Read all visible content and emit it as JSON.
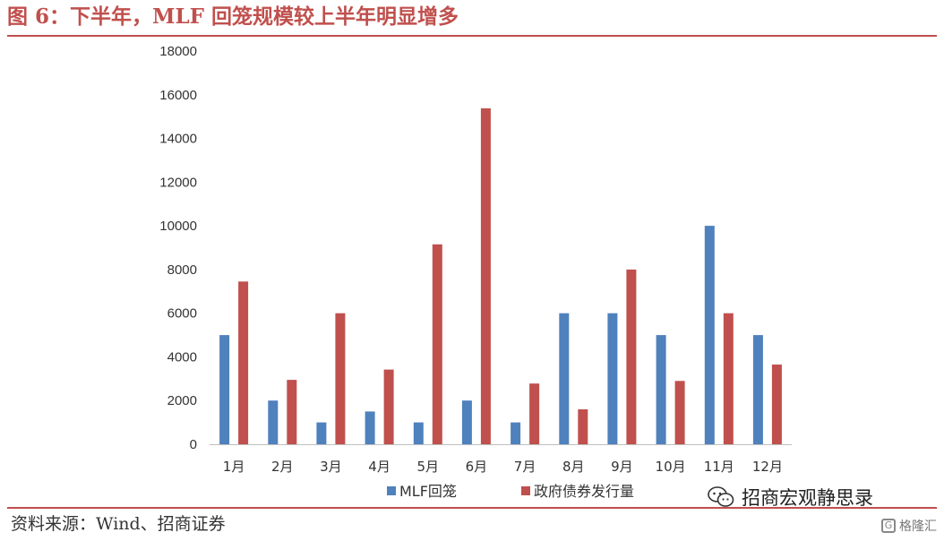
{
  "header": {
    "title": "图 6：下半年，MLF 回笼规模较上半年明显增多"
  },
  "footer": {
    "source": "资料来源：Wind、招商证券",
    "watermark": "招商宏观静思录",
    "badge": "格隆汇"
  },
  "colors": {
    "accent": "#c0504d",
    "series_blue": "#4f81bd",
    "series_red": "#c0504d"
  },
  "chart_data": {
    "type": "bar",
    "categories": [
      "1月",
      "2月",
      "3月",
      "4月",
      "5月",
      "6月",
      "7月",
      "8月",
      "9月",
      "10月",
      "11月",
      "12月"
    ],
    "series": [
      {
        "name": "MLF回笼",
        "color": "#4f81bd",
        "values": [
          5000,
          2000,
          1000,
          1500,
          1000,
          2000,
          1000,
          6000,
          6000,
          5000,
          10000,
          5000
        ]
      },
      {
        "name": "政府债券发行量",
        "color": "#c0504d",
        "values": [
          7450,
          2950,
          6000,
          3420,
          9150,
          15380,
          2780,
          1600,
          8000,
          2900,
          6000,
          3650
        ]
      }
    ],
    "yticks": [
      0,
      2000,
      4000,
      6000,
      8000,
      10000,
      12000,
      14000,
      16000,
      18000
    ],
    "ylim": [
      0,
      18000
    ],
    "grid": false,
    "legend_position": "bottom"
  }
}
